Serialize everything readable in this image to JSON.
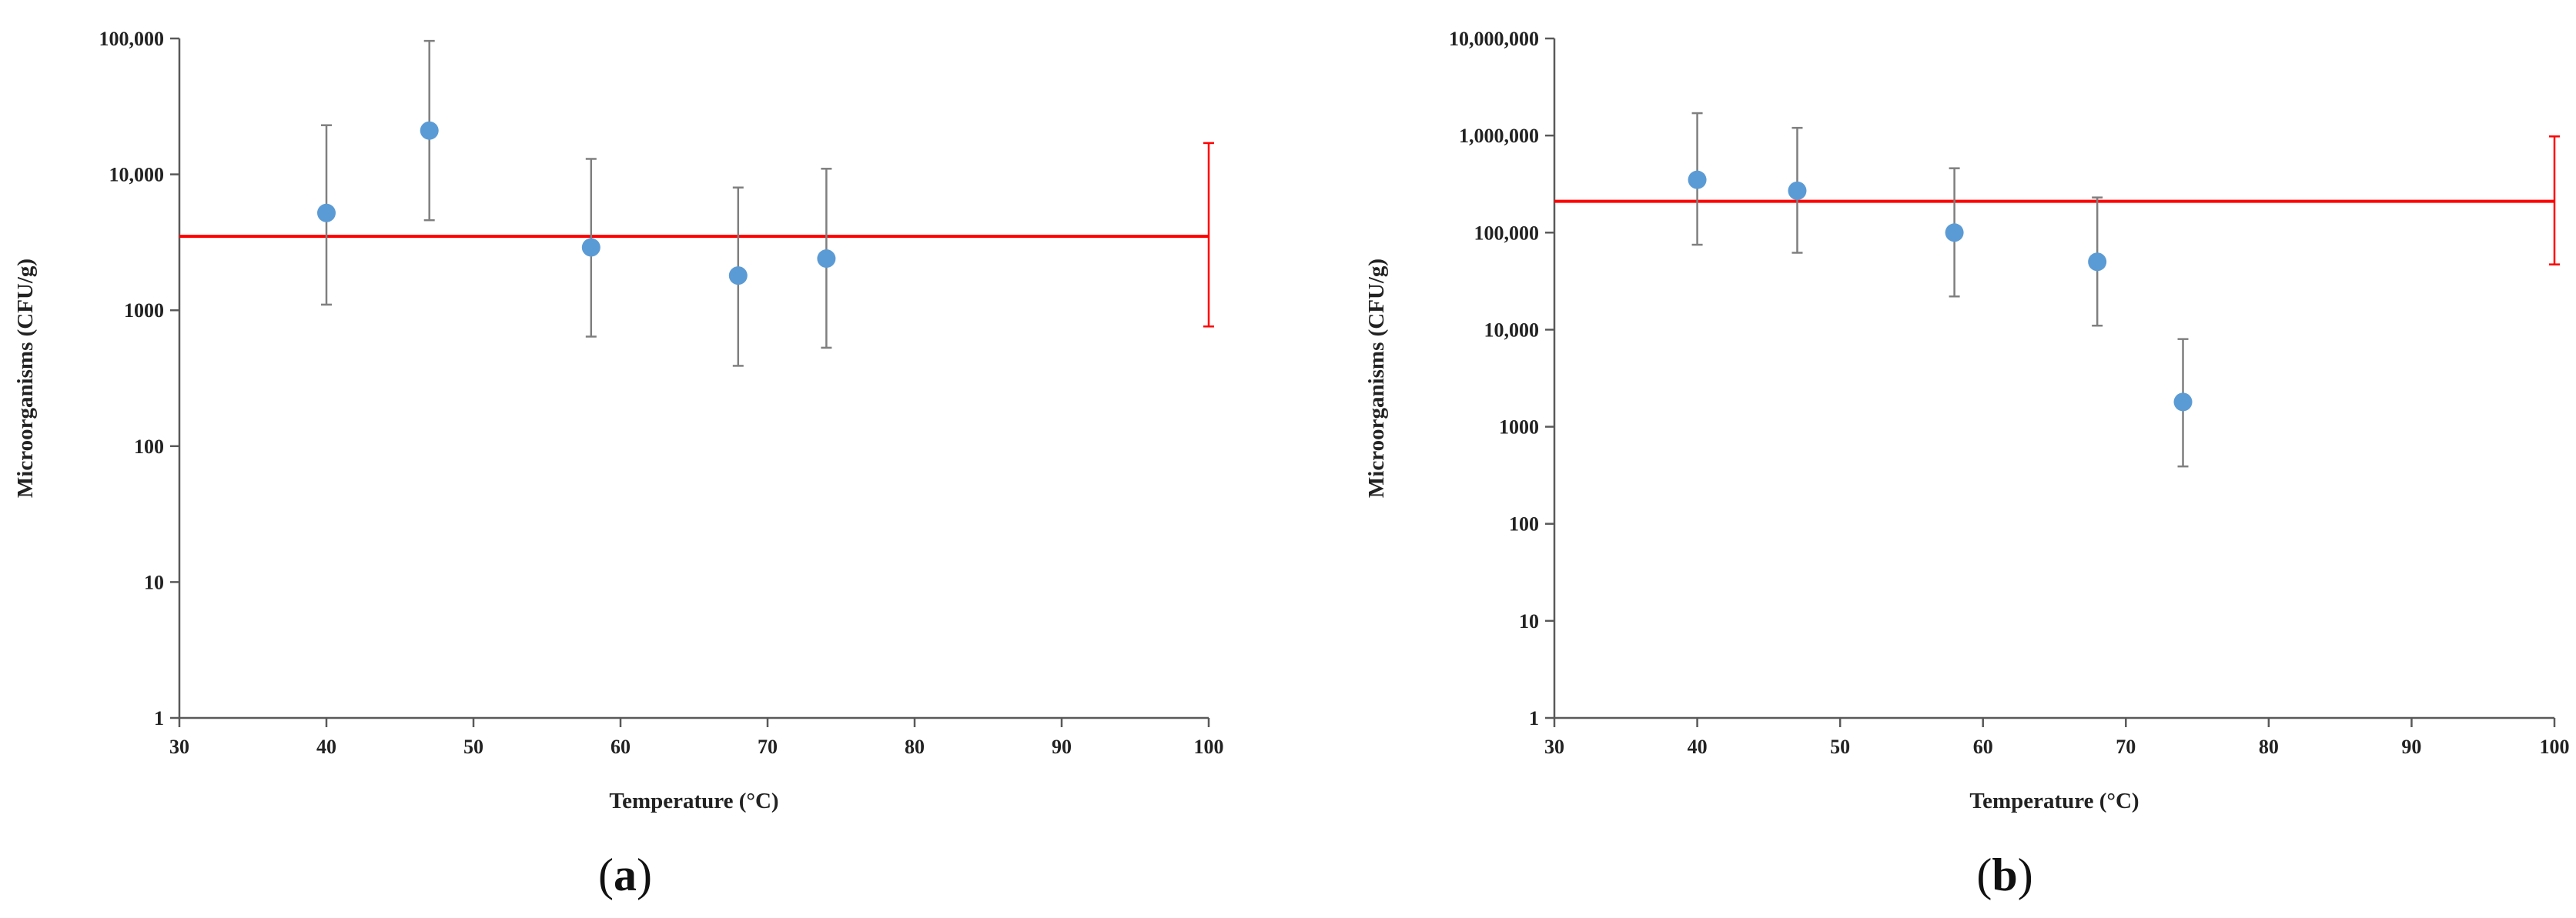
{
  "chart_data": [
    {
      "type": "scatter",
      "panel_label": "a",
      "xlabel": "Temperature (°C)",
      "ylabel": "Microorganisms (CFU/g)",
      "x_ticks": [
        30,
        40,
        50,
        60,
        70,
        80,
        90,
        100
      ],
      "x_tick_labels": [
        "30",
        "40",
        "50",
        "60",
        "70",
        "80",
        "90",
        "100"
      ],
      "xlim": [
        30,
        100
      ],
      "y_scale": "log",
      "ylim": [
        1,
        100000
      ],
      "y_ticks": [
        1,
        10,
        100,
        1000,
        10000,
        100000
      ],
      "y_tick_labels": [
        "1",
        "10",
        "100",
        "1000",
        "10,000",
        "100,000"
      ],
      "grid": false,
      "points": [
        {
          "x": 40,
          "y": 5200,
          "err_low": 1100,
          "err_high": 23000
        },
        {
          "x": 47,
          "y": 21000,
          "err_low": 4600,
          "err_high": 96000
        },
        {
          "x": 58,
          "y": 2900,
          "err_low": 640,
          "err_high": 13000
        },
        {
          "x": 68,
          "y": 1800,
          "err_low": 390,
          "err_high": 8000
        },
        {
          "x": 74,
          "y": 2400,
          "err_low": 530,
          "err_high": 11000
        }
      ],
      "reference_line": {
        "y": 3500,
        "err_x": 100,
        "err_low": 760,
        "err_high": 17000
      },
      "point_color": "#5b9bd5",
      "reference_color": "#ff0000",
      "error_bar_color": "#7f7f7f"
    },
    {
      "type": "scatter",
      "panel_label": "b",
      "xlabel": "Temperature (°C)",
      "ylabel": "Microorganisms (CFU/g)",
      "x_ticks": [
        30,
        40,
        50,
        60,
        70,
        80,
        90,
        100
      ],
      "x_tick_labels": [
        "30",
        "40",
        "50",
        "60",
        "70",
        "80",
        "90",
        "100"
      ],
      "xlim": [
        30,
        100
      ],
      "y_scale": "log",
      "ylim": [
        1,
        10000000
      ],
      "y_ticks": [
        1,
        10,
        100,
        1000,
        10000,
        100000,
        1000000,
        10000000
      ],
      "y_tick_labels": [
        "1",
        "10",
        "100",
        "1000",
        "10,000",
        "100,000",
        "1,000,000",
        "10,000,000"
      ],
      "grid": false,
      "points": [
        {
          "x": 40,
          "y": 350000,
          "err_low": 75000,
          "err_high": 1700000
        },
        {
          "x": 47,
          "y": 270000,
          "err_low": 62000,
          "err_high": 1200000
        },
        {
          "x": 58,
          "y": 100000,
          "err_low": 22000,
          "err_high": 460000
        },
        {
          "x": 68,
          "y": 50000,
          "err_low": 11000,
          "err_high": 230000
        },
        {
          "x": 74,
          "y": 1800,
          "err_low": 390,
          "err_high": 8000
        }
      ],
      "reference_line": {
        "y": 210000,
        "err_x": 100,
        "err_low": 47000,
        "err_high": 980000
      },
      "point_color": "#5b9bd5",
      "reference_color": "#ff0000",
      "error_bar_color": "#7f7f7f"
    }
  ]
}
